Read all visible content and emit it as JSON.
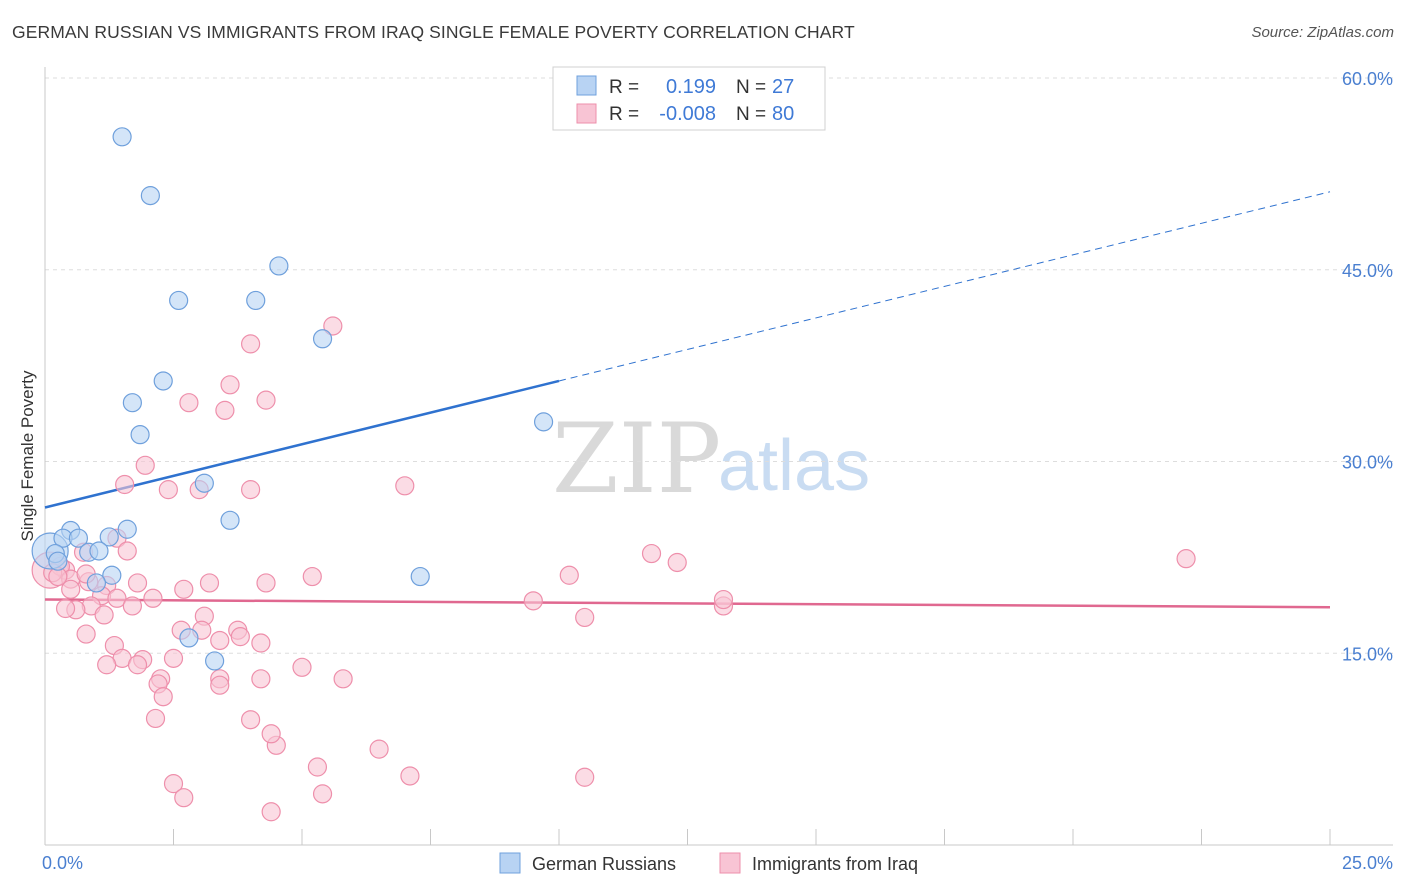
{
  "title": "GERMAN RUSSIAN VS IMMIGRANTS FROM IRAQ SINGLE FEMALE POVERTY CORRELATION CHART",
  "source": "Source: ZipAtlas.com",
  "watermark": {
    "part1": "ZIP",
    "part2": "atlas"
  },
  "colors": {
    "blue_fill": "#b8d3f3",
    "blue_stroke": "#6fa0dc",
    "blue_line": "#2f72cf",
    "pink_fill": "#f8c4d4",
    "pink_stroke": "#ee8fab",
    "pink_line": "#e06890",
    "tick_text": "#4a7fd0",
    "grid": "#dddddd"
  },
  "stats": {
    "r_label": "R =",
    "n_label": "N =",
    "rows": [
      {
        "r": "0.199",
        "n": "27"
      },
      {
        "r": "-0.008",
        "n": "80"
      }
    ]
  },
  "chart_data": {
    "type": "scatter",
    "ylabel": "Single Female Poverty",
    "xlim": [
      0,
      25
    ],
    "ylim": [
      0,
      60
    ],
    "x_ticks": [
      {
        "value": 0,
        "label": "0.0%"
      },
      {
        "value": 25,
        "label": "25.0%"
      }
    ],
    "y_ticks": [
      {
        "value": 15,
        "label": "15.0%"
      },
      {
        "value": 30,
        "label": "30.0%"
      },
      {
        "value": 45,
        "label": "45.0%"
      },
      {
        "value": 60,
        "label": "60.0%"
      }
    ],
    "grid": "horizontal dashed",
    "legend": "bottom-center",
    "series": [
      {
        "name": "German Russians",
        "color": "#6fa0dc",
        "trend": {
          "x0": 0,
          "y0": 26.4,
          "x1": 10,
          "y1": 36.3,
          "x_ext": 25,
          "y_ext": 51.1
        },
        "points": [
          {
            "x": 0.1,
            "y": 23.0,
            "big": true
          },
          {
            "x": 1.5,
            "y": 55.4
          },
          {
            "x": 2.05,
            "y": 50.8
          },
          {
            "x": 4.55,
            "y": 45.3
          },
          {
            "x": 2.6,
            "y": 42.6
          },
          {
            "x": 4.1,
            "y": 42.6
          },
          {
            "x": 5.4,
            "y": 39.6
          },
          {
            "x": 2.3,
            "y": 36.3
          },
          {
            "x": 1.7,
            "y": 34.6
          },
          {
            "x": 1.85,
            "y": 32.1
          },
          {
            "x": 9.7,
            "y": 33.1
          },
          {
            "x": 3.1,
            "y": 28.3
          },
          {
            "x": 3.6,
            "y": 25.4
          },
          {
            "x": 0.5,
            "y": 24.6
          },
          {
            "x": 1.6,
            "y": 24.7
          },
          {
            "x": 0.35,
            "y": 24.0
          },
          {
            "x": 0.65,
            "y": 24.0
          },
          {
            "x": 1.25,
            "y": 24.1
          },
          {
            "x": 0.2,
            "y": 22.8
          },
          {
            "x": 0.85,
            "y": 22.9
          },
          {
            "x": 1.05,
            "y": 23.0
          },
          {
            "x": 0.25,
            "y": 22.2
          },
          {
            "x": 7.3,
            "y": 21.0
          },
          {
            "x": 1.3,
            "y": 21.1
          },
          {
            "x": 1.0,
            "y": 20.5
          },
          {
            "x": 2.8,
            "y": 16.2
          },
          {
            "x": 3.3,
            "y": 14.4
          }
        ]
      },
      {
        "name": "Immigrants from Iraq",
        "color": "#ee8fab",
        "trend": {
          "x0": 0,
          "y0": 19.2,
          "x1": 25,
          "y1": 18.6
        },
        "points": [
          {
            "x": 0.1,
            "y": 21.5,
            "big": true
          },
          {
            "x": 5.6,
            "y": 40.6
          },
          {
            "x": 4.0,
            "y": 39.2
          },
          {
            "x": 3.6,
            "y": 36.0
          },
          {
            "x": 4.3,
            "y": 34.8
          },
          {
            "x": 2.8,
            "y": 34.6
          },
          {
            "x": 3.5,
            "y": 34.0
          },
          {
            "x": 1.95,
            "y": 29.7
          },
          {
            "x": 1.55,
            "y": 28.2
          },
          {
            "x": 2.4,
            "y": 27.8
          },
          {
            "x": 3.0,
            "y": 27.8
          },
          {
            "x": 4.0,
            "y": 27.8
          },
          {
            "x": 7.0,
            "y": 28.1
          },
          {
            "x": 1.4,
            "y": 24.0
          },
          {
            "x": 11.8,
            "y": 22.8
          },
          {
            "x": 12.3,
            "y": 22.1
          },
          {
            "x": 22.2,
            "y": 22.4
          },
          {
            "x": 1.6,
            "y": 23.0
          },
          {
            "x": 0.75,
            "y": 22.9
          },
          {
            "x": 10.2,
            "y": 21.1
          },
          {
            "x": 5.2,
            "y": 21.0
          },
          {
            "x": 0.4,
            "y": 21.5
          },
          {
            "x": 0.3,
            "y": 21.8
          },
          {
            "x": 0.5,
            "y": 20.8
          },
          {
            "x": 0.85,
            "y": 20.6
          },
          {
            "x": 1.2,
            "y": 20.3
          },
          {
            "x": 1.8,
            "y": 20.5
          },
          {
            "x": 3.2,
            "y": 20.5
          },
          {
            "x": 4.3,
            "y": 20.5
          },
          {
            "x": 2.7,
            "y": 20.0
          },
          {
            "x": 1.1,
            "y": 19.5
          },
          {
            "x": 1.4,
            "y": 19.3
          },
          {
            "x": 2.1,
            "y": 19.3
          },
          {
            "x": 9.5,
            "y": 19.1
          },
          {
            "x": 13.2,
            "y": 18.7
          },
          {
            "x": 13.2,
            "y": 19.2
          },
          {
            "x": 0.9,
            "y": 18.7
          },
          {
            "x": 1.7,
            "y": 18.7
          },
          {
            "x": 0.6,
            "y": 18.4
          },
          {
            "x": 0.4,
            "y": 18.5
          },
          {
            "x": 1.15,
            "y": 18.0
          },
          {
            "x": 3.1,
            "y": 17.9
          },
          {
            "x": 10.5,
            "y": 17.8
          },
          {
            "x": 2.65,
            "y": 16.8
          },
          {
            "x": 3.05,
            "y": 16.8
          },
          {
            "x": 3.75,
            "y": 16.8
          },
          {
            "x": 3.8,
            "y": 16.3
          },
          {
            "x": 0.8,
            "y": 16.5
          },
          {
            "x": 3.4,
            "y": 16.0
          },
          {
            "x": 4.2,
            "y": 15.8
          },
          {
            "x": 1.35,
            "y": 15.6
          },
          {
            "x": 1.5,
            "y": 14.6
          },
          {
            "x": 1.9,
            "y": 14.5
          },
          {
            "x": 2.5,
            "y": 14.6
          },
          {
            "x": 1.2,
            "y": 14.1
          },
          {
            "x": 1.8,
            "y": 14.1
          },
          {
            "x": 5.0,
            "y": 13.9
          },
          {
            "x": 3.4,
            "y": 13.0
          },
          {
            "x": 4.2,
            "y": 13.0
          },
          {
            "x": 5.8,
            "y": 13.0
          },
          {
            "x": 2.25,
            "y": 13.0
          },
          {
            "x": 2.2,
            "y": 12.6
          },
          {
            "x": 3.4,
            "y": 12.5
          },
          {
            "x": 2.3,
            "y": 11.6
          },
          {
            "x": 2.15,
            "y": 9.9
          },
          {
            "x": 4.0,
            "y": 9.8
          },
          {
            "x": 4.5,
            "y": 7.8
          },
          {
            "x": 6.5,
            "y": 7.5
          },
          {
            "x": 4.4,
            "y": 8.7
          },
          {
            "x": 5.3,
            "y": 6.1
          },
          {
            "x": 7.1,
            "y": 5.4
          },
          {
            "x": 10.5,
            "y": 5.3
          },
          {
            "x": 2.5,
            "y": 4.8
          },
          {
            "x": 2.7,
            "y": 3.7
          },
          {
            "x": 5.4,
            "y": 4.0
          },
          {
            "x": 4.4,
            "y": 2.6
          },
          {
            "x": 0.15,
            "y": 21.3
          },
          {
            "x": 0.25,
            "y": 21.0
          },
          {
            "x": 0.5,
            "y": 20.0
          },
          {
            "x": 0.8,
            "y": 21.2
          }
        ]
      }
    ]
  }
}
